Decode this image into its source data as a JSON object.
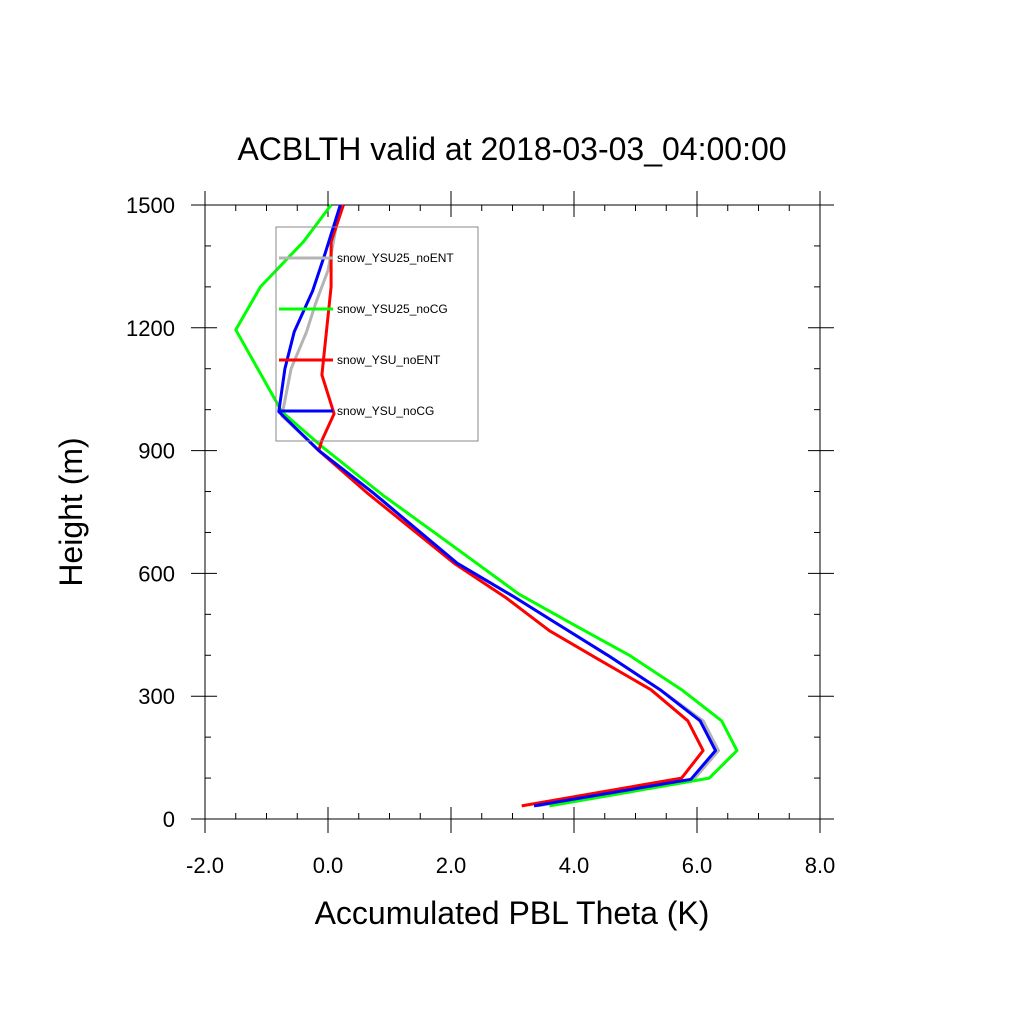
{
  "chart_data": {
    "type": "line",
    "title": "ACBLTH valid at 2018-03-03_04:00:00",
    "xlabel": "Accumulated PBL Theta (K)",
    "ylabel": "Height (m)",
    "xlim": [
      -2.0,
      8.0
    ],
    "ylim": [
      0,
      1500
    ],
    "xticks": [
      -2.0,
      0.0,
      2.0,
      4.0,
      6.0,
      8.0
    ],
    "xtick_labels": [
      "-2.0",
      "0.0",
      "2.0",
      "4.0",
      "6.0",
      "8.0"
    ],
    "yticks": [
      0,
      300,
      600,
      900,
      1200,
      1500
    ],
    "ytick_labels": [
      "0",
      "300",
      "600",
      "900",
      "1200",
      "1500"
    ],
    "grid": false,
    "legend_position": "top-left",
    "series": [
      {
        "name": "snow_YSU25_noENT",
        "color": "#b4b4b4",
        "points": [
          [
            3.4,
            32
          ],
          [
            5.95,
            97
          ],
          [
            6.35,
            167
          ],
          [
            6.1,
            240
          ],
          [
            5.4,
            316
          ],
          [
            4.55,
            400
          ],
          [
            3.8,
            470
          ],
          [
            3.0,
            545
          ],
          [
            2.1,
            625
          ],
          [
            0.75,
            795
          ],
          [
            -0.15,
            900
          ],
          [
            -0.75,
            985
          ],
          [
            -0.6,
            1100
          ],
          [
            -0.35,
            1190
          ],
          [
            -0.2,
            1260
          ],
          [
            0.0,
            1340
          ],
          [
            0.2,
            1500
          ]
        ]
      },
      {
        "name": "snow_YSU25_noCG",
        "color": "#00ff00",
        "points": [
          [
            3.6,
            32
          ],
          [
            6.2,
            100
          ],
          [
            6.65,
            167
          ],
          [
            6.4,
            240
          ],
          [
            5.75,
            316
          ],
          [
            4.9,
            400
          ],
          [
            4.05,
            470
          ],
          [
            3.1,
            550
          ],
          [
            2.05,
            665
          ],
          [
            0.9,
            790
          ],
          [
            -0.1,
            910
          ],
          [
            -0.75,
            995
          ],
          [
            -1.5,
            1195
          ],
          [
            -1.1,
            1300
          ],
          [
            -0.4,
            1410
          ],
          [
            0.05,
            1500
          ]
        ]
      },
      {
        "name": "snow_YSU_noENT",
        "color": "#ff0000",
        "points": [
          [
            3.15,
            32
          ],
          [
            5.75,
            100
          ],
          [
            6.1,
            167
          ],
          [
            5.85,
            240
          ],
          [
            5.25,
            316
          ],
          [
            4.4,
            390
          ],
          [
            3.6,
            460
          ],
          [
            2.9,
            540
          ],
          [
            2.05,
            625
          ],
          [
            0.65,
            795
          ],
          [
            -0.15,
            900
          ],
          [
            -0.1,
            925
          ],
          [
            0.1,
            990
          ],
          [
            -0.1,
            1085
          ],
          [
            0.05,
            1300
          ],
          [
            0.05,
            1410
          ],
          [
            0.25,
            1500
          ]
        ]
      },
      {
        "name": "snow_YSU_noCG",
        "color": "#0000ff",
        "points": [
          [
            3.35,
            32
          ],
          [
            5.9,
            97
          ],
          [
            6.3,
            167
          ],
          [
            6.05,
            240
          ],
          [
            5.4,
            316
          ],
          [
            4.55,
            400
          ],
          [
            3.8,
            470
          ],
          [
            3.0,
            545
          ],
          [
            2.1,
            625
          ],
          [
            0.75,
            795
          ],
          [
            -0.15,
            900
          ],
          [
            -0.8,
            995
          ],
          [
            -0.7,
            1100
          ],
          [
            -0.55,
            1190
          ],
          [
            -0.25,
            1290
          ],
          [
            -0.05,
            1380
          ],
          [
            0.2,
            1500
          ]
        ]
      }
    ]
  }
}
